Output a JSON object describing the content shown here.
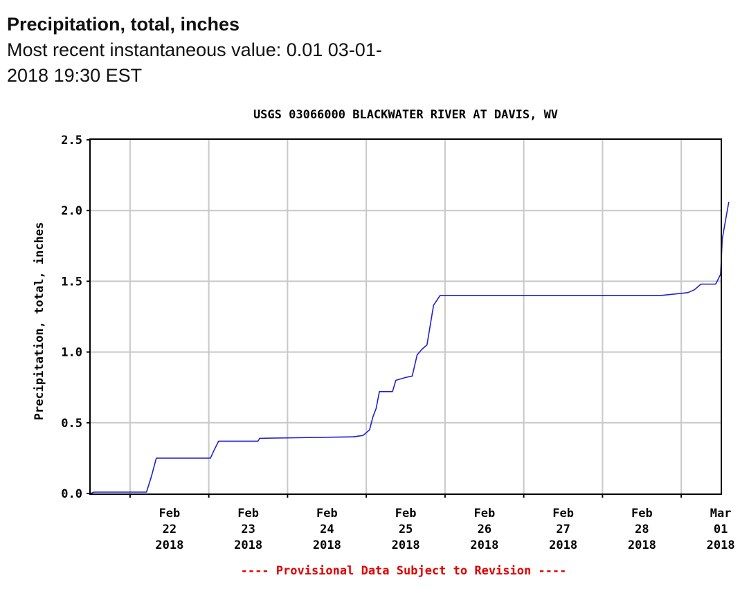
{
  "header": {
    "title": "Precipitation, total, inches",
    "subtitle_line1": "Most recent instantaneous value: 0.01 03-01-",
    "subtitle_line2": "2018   19:30 EST"
  },
  "colors": {
    "series": "#2020d0",
    "grid": "#c8c8c8",
    "axis": "#000000",
    "footer": "#e00000"
  },
  "chart_data": {
    "type": "line",
    "title": "USGS 03066000 BLACKWATER RIVER AT DAVIS, WV",
    "ylabel": "Precipitation, total, inches",
    "xlabel": "",
    "ylim": [
      0.0,
      2.5
    ],
    "xlim": [
      "2018-02-21 12:00",
      "2018-03-01 12:00"
    ],
    "yticks": [
      "0.0",
      "0.5",
      "1.0",
      "1.5",
      "2.0",
      "2.5"
    ],
    "xticks": [
      {
        "date": "2018-02-22 00:00",
        "l1": "Feb",
        "l2": "22",
        "l3": "2018"
      },
      {
        "date": "2018-02-23 00:00",
        "l1": "Feb",
        "l2": "23",
        "l3": "2018"
      },
      {
        "date": "2018-02-24 00:00",
        "l1": "Feb",
        "l2": "24",
        "l3": "2018"
      },
      {
        "date": "2018-02-25 00:00",
        "l1": "Feb",
        "l2": "25",
        "l3": "2018"
      },
      {
        "date": "2018-02-26 00:00",
        "l1": "Feb",
        "l2": "26",
        "l3": "2018"
      },
      {
        "date": "2018-02-27 00:00",
        "l1": "Feb",
        "l2": "27",
        "l3": "2018"
      },
      {
        "date": "2018-02-28 00:00",
        "l1": "Feb",
        "l2": "28",
        "l3": "2018"
      },
      {
        "date": "2018-03-01 00:00",
        "l1": "Mar",
        "l2": "01",
        "l3": "2018"
      }
    ],
    "grid": true,
    "series": [
      {
        "points": [
          {
            "x": "2018-02-21 12:00",
            "y": 0.0
          },
          {
            "x": "2018-02-21 13:00",
            "y": 0.01
          },
          {
            "x": "2018-02-22 05:00",
            "y": 0.01
          },
          {
            "x": "2018-02-22 06:30",
            "y": 0.12
          },
          {
            "x": "2018-02-22 08:00",
            "y": 0.25
          },
          {
            "x": "2018-02-23 00:30",
            "y": 0.25
          },
          {
            "x": "2018-02-23 01:30",
            "y": 0.3
          },
          {
            "x": "2018-02-23 03:00",
            "y": 0.37
          },
          {
            "x": "2018-02-23 15:00",
            "y": 0.37
          },
          {
            "x": "2018-02-23 15:30",
            "y": 0.39
          },
          {
            "x": "2018-02-24 20:00",
            "y": 0.4
          },
          {
            "x": "2018-02-24 23:00",
            "y": 0.41
          },
          {
            "x": "2018-02-25 01:00",
            "y": 0.45
          },
          {
            "x": "2018-02-25 02:00",
            "y": 0.54
          },
          {
            "x": "2018-02-25 03:00",
            "y": 0.6
          },
          {
            "x": "2018-02-25 04:00",
            "y": 0.72
          },
          {
            "x": "2018-02-25 08:00",
            "y": 0.72
          },
          {
            "x": "2018-02-25 09:00",
            "y": 0.8
          },
          {
            "x": "2018-02-25 12:00",
            "y": 0.82
          },
          {
            "x": "2018-02-25 14:00",
            "y": 0.83
          },
          {
            "x": "2018-02-25 15:30",
            "y": 0.98
          },
          {
            "x": "2018-02-25 17:00",
            "y": 1.02
          },
          {
            "x": "2018-02-25 18:30",
            "y": 1.05
          },
          {
            "x": "2018-02-25 20:30",
            "y": 1.33
          },
          {
            "x": "2018-02-25 22:30",
            "y": 1.4
          },
          {
            "x": "2018-02-28 18:00",
            "y": 1.4
          },
          {
            "x": "2018-03-01 02:00",
            "y": 1.42
          },
          {
            "x": "2018-03-01 04:00",
            "y": 1.44
          },
          {
            "x": "2018-03-01 06:00",
            "y": 1.48
          },
          {
            "x": "2018-03-01 10:30",
            "y": 1.48
          },
          {
            "x": "2018-03-01 12:00",
            "y": 1.55
          },
          {
            "x": "2018-03-01 12:30",
            "y": 1.8
          },
          {
            "x": "2018-03-01 14:30",
            "y": 2.06
          }
        ]
      }
    ],
    "footer": "---- Provisional Data Subject to Revision ----"
  }
}
